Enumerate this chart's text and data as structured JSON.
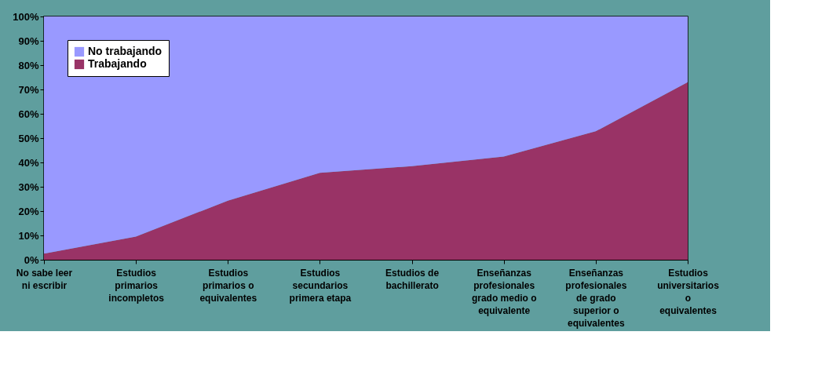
{
  "chart_data": {
    "type": "area",
    "stacked": true,
    "categories": [
      "No sabe leer ni escribir",
      "Estudios primarios incompletos",
      "Estudios primarios o equivalentes",
      "Estudios secundarios primera etapa",
      "Estudios de bachillerato",
      "Enseñanzas profesionales grado medio o equivalente",
      "Enseñanzas profesionales de grado superior o equivalentes",
      "Estudios universitarios o equivalentes"
    ],
    "series": [
      {
        "name": "Trabajando",
        "color": "#993366",
        "values": [
          2.5,
          9.5,
          24.3,
          35.7,
          38.5,
          42.4,
          52.8,
          73.0
        ]
      },
      {
        "name": "No trabajando",
        "color": "#9999ff",
        "values": [
          97.5,
          90.5,
          75.7,
          64.3,
          61.5,
          57.6,
          47.2,
          27.0
        ]
      }
    ],
    "ylim": [
      0,
      100
    ],
    "yticks": [
      {
        "value": 0,
        "label": "0%"
      },
      {
        "value": 10,
        "label": "10%"
      },
      {
        "value": 20,
        "label": "20%"
      },
      {
        "value": 30,
        "label": "30%"
      },
      {
        "value": 40,
        "label": "40%"
      },
      {
        "value": 50,
        "label": "50%"
      },
      {
        "value": 60,
        "label": "60%"
      },
      {
        "value": 70,
        "label": "70%"
      },
      {
        "value": 80,
        "label": "80%"
      },
      {
        "value": 90,
        "label": "90%"
      },
      {
        "value": 100,
        "label": "100%"
      }
    ],
    "grid": false,
    "legend": "top left"
  }
}
